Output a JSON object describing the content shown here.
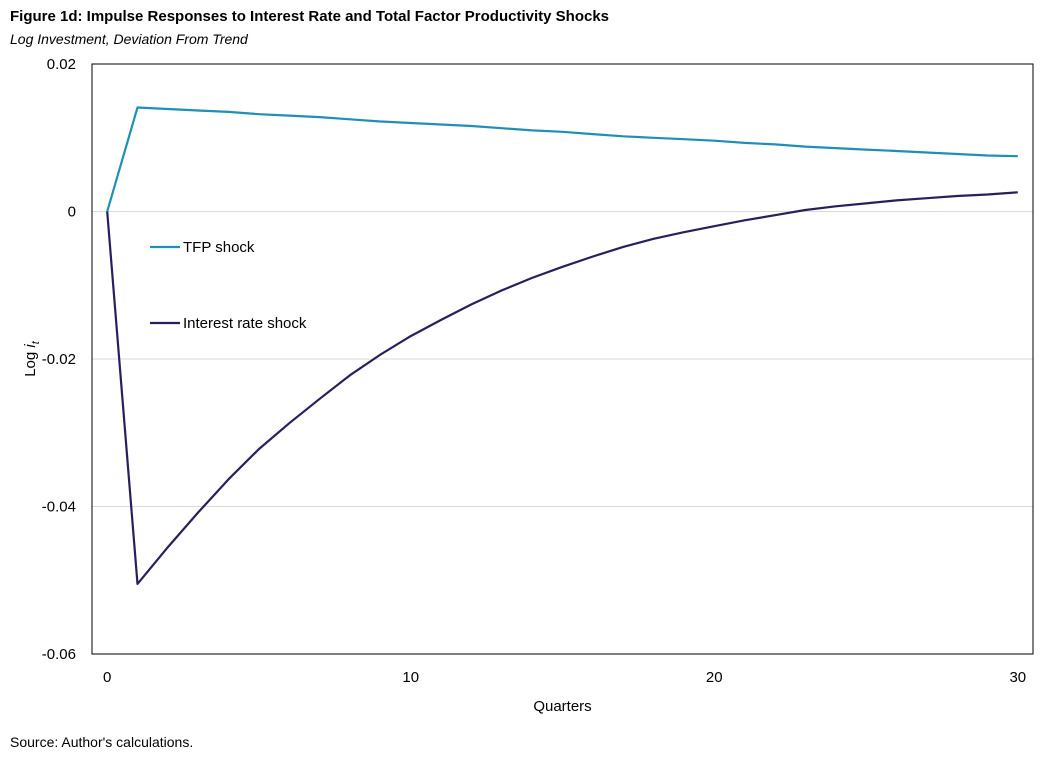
{
  "title": "Figure 1d: Impulse Responses to Interest Rate and Total Factor Productivity Shocks",
  "subtitle": "Log Investment, Deviation From Trend",
  "source": "Source: Author's calculations.",
  "chart_data": {
    "type": "line",
    "xlabel": "Quarters",
    "ylabel": "Log i_t",
    "xlim": [
      -0.5,
      30.5
    ],
    "ylim": [
      -0.06,
      0.02
    ],
    "xticks": [
      0,
      10,
      20,
      30
    ],
    "xtick_labels": [
      "0",
      "10",
      "20",
      "30"
    ],
    "yticks": [
      0.02,
      0,
      -0.02,
      -0.04,
      -0.06
    ],
    "ytick_labels": [
      "0.02",
      "0",
      "-0.02",
      "-0.04",
      "-0.06"
    ],
    "grid": true,
    "legend_position": "left",
    "x": [
      0,
      1,
      2,
      3,
      4,
      5,
      6,
      7,
      8,
      9,
      10,
      11,
      12,
      13,
      14,
      15,
      16,
      17,
      18,
      19,
      20,
      21,
      22,
      23,
      24,
      25,
      26,
      27,
      28,
      29,
      30
    ],
    "series": [
      {
        "name": "TFP shock",
        "color": "#1f8fb8",
        "values": [
          0,
          0.0141,
          0.0139,
          0.0137,
          0.0135,
          0.0132,
          0.013,
          0.0128,
          0.0125,
          0.0122,
          0.012,
          0.0118,
          0.0116,
          0.0113,
          0.011,
          0.0108,
          0.0105,
          0.0102,
          0.01,
          0.0098,
          0.0096,
          0.0093,
          0.0091,
          0.0088,
          0.0086,
          0.0084,
          0.0082,
          0.008,
          0.0078,
          0.0076,
          0.0075
        ]
      },
      {
        "name": "Interest rate shock",
        "color": "#26215e",
        "values": [
          0,
          -0.0505,
          -0.0455,
          -0.0408,
          -0.0363,
          -0.0322,
          -0.0287,
          -0.0254,
          -0.0222,
          -0.0194,
          -0.0169,
          -0.0147,
          -0.0126,
          -0.0107,
          -0.009,
          -0.0075,
          -0.0061,
          -0.0048,
          -0.0037,
          -0.0028,
          -0.002,
          -0.0012,
          -0.0005,
          0.0002,
          0.0007,
          0.0011,
          0.0015,
          0.0018,
          0.0021,
          0.0023,
          0.0026
        ]
      }
    ]
  }
}
